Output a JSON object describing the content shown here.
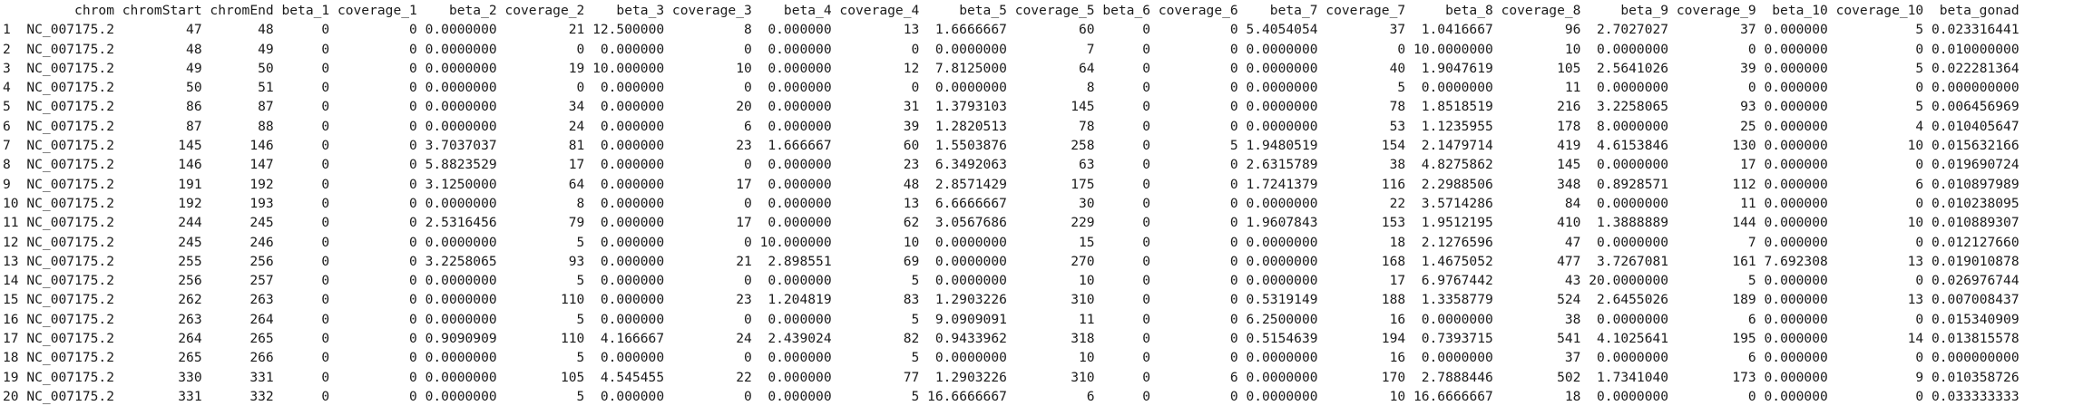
{
  "console": {
    "columns": [
      "chrom",
      "chromStart",
      "chromEnd",
      "beta_1",
      "coverage_1",
      "beta_2",
      "coverage_2",
      "beta_3",
      "coverage_3",
      "beta_4",
      "coverage_4",
      "beta_5",
      "coverage_5",
      "beta_6",
      "coverage_6",
      "beta_7",
      "coverage_7",
      "beta_8",
      "coverage_8",
      "beta_9",
      "coverage_9",
      "beta_10",
      "coverage_10",
      "beta_gonad"
    ],
    "rows": [
      [
        "1",
        "NC_007175.2",
        "47",
        "48",
        "0",
        "0",
        "0.0000000",
        "21",
        "12.500000",
        "8",
        "0.000000",
        "13",
        "1.6666667",
        "60",
        "0",
        "0",
        "5.4054054",
        "37",
        "1.0416667",
        "96",
        "2.7027027",
        "37",
        "0.000000",
        "5",
        "0.023316441"
      ],
      [
        "2",
        "NC_007175.2",
        "48",
        "49",
        "0",
        "0",
        "0.0000000",
        "0",
        "0.000000",
        "0",
        "0.000000",
        "0",
        "0.0000000",
        "7",
        "0",
        "0",
        "0.0000000",
        "0",
        "10.0000000",
        "10",
        "0.0000000",
        "0",
        "0.000000",
        "0",
        "0.010000000"
      ],
      [
        "3",
        "NC_007175.2",
        "49",
        "50",
        "0",
        "0",
        "0.0000000",
        "19",
        "10.000000",
        "10",
        "0.000000",
        "12",
        "7.8125000",
        "64",
        "0",
        "0",
        "0.0000000",
        "40",
        "1.9047619",
        "105",
        "2.5641026",
        "39",
        "0.000000",
        "5",
        "0.022281364"
      ],
      [
        "4",
        "NC_007175.2",
        "50",
        "51",
        "0",
        "0",
        "0.0000000",
        "0",
        "0.000000",
        "0",
        "0.000000",
        "0",
        "0.0000000",
        "8",
        "0",
        "0",
        "0.0000000",
        "5",
        "0.0000000",
        "11",
        "0.0000000",
        "0",
        "0.000000",
        "0",
        "0.000000000"
      ],
      [
        "5",
        "NC_007175.2",
        "86",
        "87",
        "0",
        "0",
        "0.0000000",
        "34",
        "0.000000",
        "20",
        "0.000000",
        "31",
        "1.3793103",
        "145",
        "0",
        "0",
        "0.0000000",
        "78",
        "1.8518519",
        "216",
        "3.2258065",
        "93",
        "0.000000",
        "5",
        "0.006456969"
      ],
      [
        "6",
        "NC_007175.2",
        "87",
        "88",
        "0",
        "0",
        "0.0000000",
        "24",
        "0.000000",
        "6",
        "0.000000",
        "39",
        "1.2820513",
        "78",
        "0",
        "0",
        "0.0000000",
        "53",
        "1.1235955",
        "178",
        "8.0000000",
        "25",
        "0.000000",
        "4",
        "0.010405647"
      ],
      [
        "7",
        "NC_007175.2",
        "145",
        "146",
        "0",
        "0",
        "3.7037037",
        "81",
        "0.000000",
        "23",
        "1.666667",
        "60",
        "1.5503876",
        "258",
        "0",
        "5",
        "1.9480519",
        "154",
        "2.1479714",
        "419",
        "4.6153846",
        "130",
        "0.000000",
        "10",
        "0.015632166"
      ],
      [
        "8",
        "NC_007175.2",
        "146",
        "147",
        "0",
        "0",
        "5.8823529",
        "17",
        "0.000000",
        "0",
        "0.000000",
        "23",
        "6.3492063",
        "63",
        "0",
        "0",
        "2.6315789",
        "38",
        "4.8275862",
        "145",
        "0.0000000",
        "17",
        "0.000000",
        "0",
        "0.019690724"
      ],
      [
        "9",
        "NC_007175.2",
        "191",
        "192",
        "0",
        "0",
        "3.1250000",
        "64",
        "0.000000",
        "17",
        "0.000000",
        "48",
        "2.8571429",
        "175",
        "0",
        "0",
        "1.7241379",
        "116",
        "2.2988506",
        "348",
        "0.8928571",
        "112",
        "0.000000",
        "6",
        "0.010897989"
      ],
      [
        "10",
        "NC_007175.2",
        "192",
        "193",
        "0",
        "0",
        "0.0000000",
        "8",
        "0.000000",
        "0",
        "0.000000",
        "13",
        "6.6666667",
        "30",
        "0",
        "0",
        "0.0000000",
        "22",
        "3.5714286",
        "84",
        "0.0000000",
        "11",
        "0.000000",
        "0",
        "0.010238095"
      ],
      [
        "11",
        "NC_007175.2",
        "244",
        "245",
        "0",
        "0",
        "2.5316456",
        "79",
        "0.000000",
        "17",
        "0.000000",
        "62",
        "3.0567686",
        "229",
        "0",
        "0",
        "1.9607843",
        "153",
        "1.9512195",
        "410",
        "1.3888889",
        "144",
        "0.000000",
        "10",
        "0.010889307"
      ],
      [
        "12",
        "NC_007175.2",
        "245",
        "246",
        "0",
        "0",
        "0.0000000",
        "5",
        "0.000000",
        "0",
        "10.000000",
        "10",
        "0.0000000",
        "15",
        "0",
        "0",
        "0.0000000",
        "18",
        "2.1276596",
        "47",
        "0.0000000",
        "7",
        "0.000000",
        "0",
        "0.012127660"
      ],
      [
        "13",
        "NC_007175.2",
        "255",
        "256",
        "0",
        "0",
        "3.2258065",
        "93",
        "0.000000",
        "21",
        "2.898551",
        "69",
        "0.0000000",
        "270",
        "0",
        "0",
        "0.0000000",
        "168",
        "1.4675052",
        "477",
        "3.7267081",
        "161",
        "7.692308",
        "13",
        "0.019010878"
      ],
      [
        "14",
        "NC_007175.2",
        "256",
        "257",
        "0",
        "0",
        "0.0000000",
        "5",
        "0.000000",
        "0",
        "0.000000",
        "5",
        "0.0000000",
        "10",
        "0",
        "0",
        "0.0000000",
        "17",
        "6.9767442",
        "43",
        "20.0000000",
        "5",
        "0.000000",
        "0",
        "0.026976744"
      ],
      [
        "15",
        "NC_007175.2",
        "262",
        "263",
        "0",
        "0",
        "0.0000000",
        "110",
        "0.000000",
        "23",
        "1.204819",
        "83",
        "1.2903226",
        "310",
        "0",
        "0",
        "0.5319149",
        "188",
        "1.3358779",
        "524",
        "2.6455026",
        "189",
        "0.000000",
        "13",
        "0.007008437"
      ],
      [
        "16",
        "NC_007175.2",
        "263",
        "264",
        "0",
        "0",
        "0.0000000",
        "5",
        "0.000000",
        "0",
        "0.000000",
        "5",
        "9.0909091",
        "11",
        "0",
        "0",
        "6.2500000",
        "16",
        "0.0000000",
        "38",
        "0.0000000",
        "6",
        "0.000000",
        "0",
        "0.015340909"
      ],
      [
        "17",
        "NC_007175.2",
        "264",
        "265",
        "0",
        "0",
        "0.9090909",
        "110",
        "4.166667",
        "24",
        "2.439024",
        "82",
        "0.9433962",
        "318",
        "0",
        "0",
        "0.5154639",
        "194",
        "0.7393715",
        "541",
        "4.1025641",
        "195",
        "0.000000",
        "14",
        "0.013815578"
      ],
      [
        "18",
        "NC_007175.2",
        "265",
        "266",
        "0",
        "0",
        "0.0000000",
        "5",
        "0.000000",
        "0",
        "0.000000",
        "5",
        "0.0000000",
        "10",
        "0",
        "0",
        "0.0000000",
        "16",
        "0.0000000",
        "37",
        "0.0000000",
        "6",
        "0.000000",
        "0",
        "0.000000000"
      ],
      [
        "19",
        "NC_007175.2",
        "330",
        "331",
        "0",
        "0",
        "0.0000000",
        "105",
        "4.545455",
        "22",
        "0.000000",
        "77",
        "1.2903226",
        "310",
        "0",
        "6",
        "0.0000000",
        "170",
        "2.7888446",
        "502",
        "1.7341040",
        "173",
        "0.000000",
        "9",
        "0.010358726"
      ],
      [
        "20",
        "NC_007175.2",
        "331",
        "332",
        "0",
        "0",
        "0.0000000",
        "5",
        "0.000000",
        "0",
        "0.000000",
        "5",
        "16.6666667",
        "6",
        "0",
        "0",
        "0.0000000",
        "10",
        "16.6666667",
        "18",
        "0.0000000",
        "0",
        "0.000000",
        "0",
        "0.033333333"
      ]
    ]
  }
}
